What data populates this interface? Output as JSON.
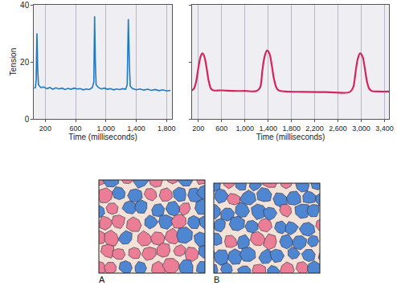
{
  "chart_data": [
    {
      "type": "line",
      "y_label": "Tension",
      "x_label": "Time (milliseconds)",
      "x": [
        50,
        70,
        80,
        90,
        100,
        110,
        140,
        180,
        220,
        260,
        300,
        340,
        380,
        420,
        460,
        500,
        540,
        580,
        620,
        660,
        700,
        740,
        780,
        820,
        840,
        850,
        860,
        870,
        900,
        940,
        980,
        1020,
        1060,
        1100,
        1140,
        1180,
        1220,
        1260,
        1280,
        1295,
        1310,
        1320,
        1350,
        1400,
        1450,
        1500,
        1550,
        1600,
        1650,
        1700,
        1750,
        1800,
        1850
      ],
      "series": [
        {
          "color": "#1f7ac4",
          "values": [
            10.8,
            11,
            14,
            30,
            17,
            12,
            11,
            11.2,
            10.6,
            11,
            10.4,
            10.9,
            10.5,
            10.8,
            10.3,
            10.7,
            10.4,
            10.8,
            10.5,
            10.6,
            10.2,
            10.5,
            10.3,
            11,
            13,
            36,
            20,
            12,
            11,
            10.5,
            10.8,
            10.4,
            10.6,
            10.2,
            10.5,
            10.3,
            10.6,
            10.4,
            12,
            35,
            18,
            11.5,
            10.6,
            10.2,
            10.5,
            10.1,
            10.4,
            10,
            10.3,
            9.9,
            10.2,
            9.8,
            10
          ]
        }
      ],
      "xlim": [
        50,
        1870
      ],
      "xticks": [
        200,
        600,
        {
          "value": 1000,
          "label": "1,000"
        },
        {
          "value": 1400,
          "label": "1,400"
        },
        {
          "value": 1800,
          "label": "1,800"
        }
      ],
      "ylim": [
        0,
        40
      ],
      "yticks": [
        0,
        20,
        40
      ],
      "grid": true
    },
    {
      "type": "line",
      "x_label": "Time (milliseconds)",
      "x": [
        90,
        120,
        160,
        200,
        240,
        270,
        300,
        340,
        380,
        420,
        460,
        600,
        800,
        1000,
        1200,
        1260,
        1300,
        1340,
        1380,
        1420,
        1460,
        1500,
        1540,
        1580,
        1700,
        2000,
        2400,
        2800,
        2860,
        2900,
        2940,
        2980,
        3020,
        3060,
        3100,
        3140,
        3180,
        3300,
        3480
      ],
      "series": [
        {
          "color": "#d6245a",
          "values": [
            10,
            10.5,
            13,
            18,
            22,
            23,
            22,
            18,
            13,
            10.5,
            10,
            10,
            9.8,
            9.8,
            9.8,
            11,
            17,
            22,
            24,
            23,
            19,
            14,
            11,
            10,
            9.6,
            9.5,
            9.4,
            9.4,
            11,
            16,
            21,
            23,
            22,
            18,
            13,
            10.5,
            9.8,
            9.6,
            9.6
          ]
        }
      ],
      "xlim": [
        90,
        3480
      ],
      "xticks": [
        200,
        600,
        {
          "value": 1000,
          "label": "1,000"
        },
        {
          "value": 1400,
          "label": "1,400"
        },
        {
          "value": 1800,
          "label": "1,800"
        },
        {
          "value": 2200,
          "label": "2,200"
        },
        {
          "value": 2600,
          "label": "2,600"
        },
        {
          "value": 3000,
          "label": "3,000"
        },
        {
          "value": 3400,
          "label": "3,400"
        }
      ],
      "ylim": [
        0,
        40
      ],
      "yticks": [
        0,
        20,
        40
      ],
      "tick_labels": "x",
      "grid": true
    }
  ],
  "panels": {
    "labels": [
      "A",
      "B"
    ]
  }
}
